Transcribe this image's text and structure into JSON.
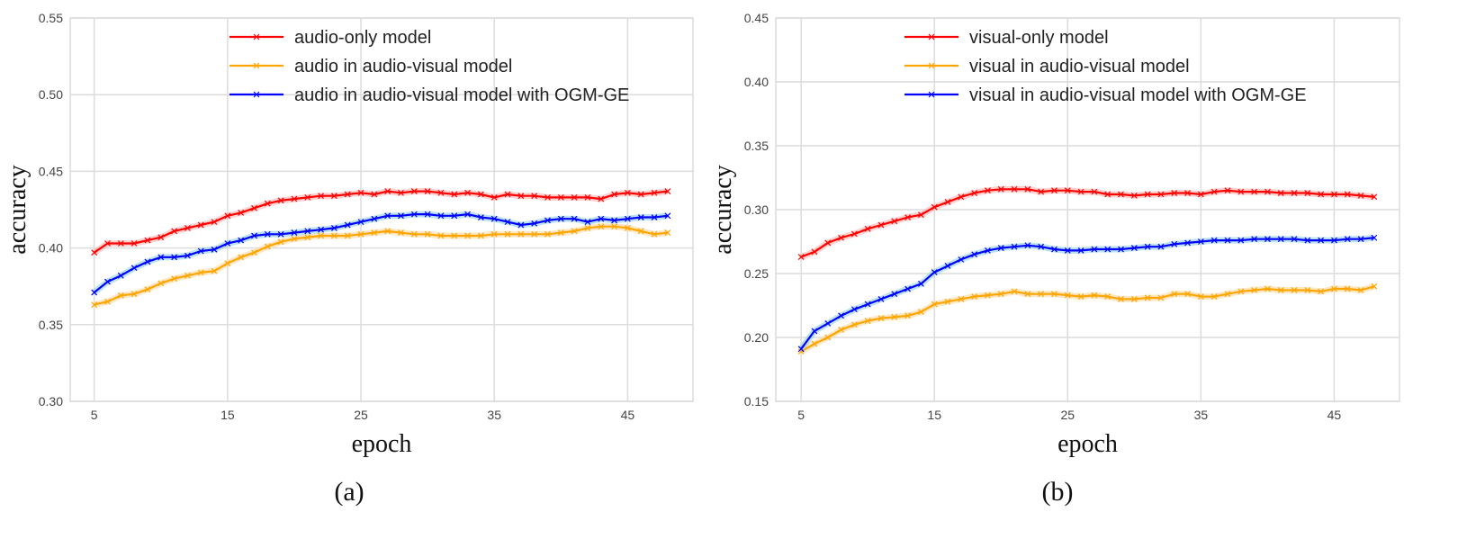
{
  "chart_data": [
    {
      "type": "line",
      "caption": "(a)",
      "xlabel": "epoch",
      "ylabel": "accuracy",
      "xlim": [
        3.2,
        49.9
      ],
      "ylim": [
        0.3,
        0.55
      ],
      "xticks": [
        5,
        15,
        25,
        35,
        45
      ],
      "yticks": [
        "0.30",
        "0.35",
        "0.40",
        "0.45",
        "0.50",
        "0.55"
      ],
      "grid": true,
      "legend_position": "top-center",
      "x": [
        5,
        6,
        7,
        8,
        9,
        10,
        11,
        12,
        13,
        14,
        15,
        16,
        17,
        18,
        19,
        20,
        21,
        22,
        23,
        24,
        25,
        26,
        27,
        28,
        29,
        30,
        31,
        32,
        33,
        34,
        35,
        36,
        37,
        38,
        39,
        40,
        41,
        42,
        43,
        44,
        45,
        46,
        47,
        48
      ],
      "series": [
        {
          "name": "audio-only model",
          "color": "#ff0000",
          "values": [
            0.397,
            0.403,
            0.403,
            0.403,
            0.405,
            0.407,
            0.411,
            0.413,
            0.415,
            0.417,
            0.421,
            0.423,
            0.426,
            0.429,
            0.431,
            0.432,
            0.433,
            0.434,
            0.434,
            0.435,
            0.436,
            0.435,
            0.437,
            0.436,
            0.437,
            0.437,
            0.436,
            0.435,
            0.436,
            0.435,
            0.433,
            0.435,
            0.434,
            0.434,
            0.433,
            0.433,
            0.433,
            0.433,
            0.432,
            0.435,
            0.436,
            0.435,
            0.436,
            0.437
          ]
        },
        {
          "name": "audio in audio-visual model",
          "color": "#ffa500",
          "values": [
            0.363,
            0.365,
            0.369,
            0.37,
            0.373,
            0.377,
            0.38,
            0.382,
            0.384,
            0.385,
            0.39,
            0.394,
            0.397,
            0.401,
            0.404,
            0.406,
            0.407,
            0.408,
            0.408,
            0.408,
            0.409,
            0.41,
            0.411,
            0.41,
            0.409,
            0.409,
            0.408,
            0.408,
            0.408,
            0.408,
            0.409,
            0.409,
            0.409,
            0.409,
            0.409,
            0.41,
            0.411,
            0.413,
            0.414,
            0.414,
            0.413,
            0.411,
            0.409,
            0.41
          ]
        },
        {
          "name": "audio in audio-visual model with OGM-GE",
          "color": "#0000ff",
          "values": [
            0.371,
            0.378,
            0.382,
            0.387,
            0.391,
            0.394,
            0.394,
            0.395,
            0.398,
            0.399,
            0.403,
            0.405,
            0.408,
            0.409,
            0.409,
            0.41,
            0.411,
            0.412,
            0.413,
            0.415,
            0.417,
            0.419,
            0.421,
            0.421,
            0.422,
            0.422,
            0.421,
            0.421,
            0.422,
            0.42,
            0.419,
            0.417,
            0.415,
            0.416,
            0.418,
            0.419,
            0.419,
            0.417,
            0.419,
            0.418,
            0.419,
            0.42,
            0.42,
            0.421
          ]
        }
      ]
    },
    {
      "type": "line",
      "caption": "(b)",
      "xlabel": "epoch",
      "ylabel": "accuracy",
      "xlim": [
        3.1,
        49.9
      ],
      "ylim": [
        0.15,
        0.45
      ],
      "xticks": [
        5,
        15,
        25,
        35,
        45
      ],
      "yticks": [
        "0.15",
        "0.20",
        "0.25",
        "0.30",
        "0.35",
        "0.40",
        "0.45"
      ],
      "grid": true,
      "legend_position": "top-center",
      "x": [
        5,
        6,
        7,
        8,
        9,
        10,
        11,
        12,
        13,
        14,
        15,
        16,
        17,
        18,
        19,
        20,
        21,
        22,
        23,
        24,
        25,
        26,
        27,
        28,
        29,
        30,
        31,
        32,
        33,
        34,
        35,
        36,
        37,
        38,
        39,
        40,
        41,
        42,
        43,
        44,
        45,
        46,
        47,
        48
      ],
      "series": [
        {
          "name": "visual-only model",
          "color": "#ff0000",
          "values": [
            0.263,
            0.267,
            0.274,
            0.278,
            0.281,
            0.285,
            0.288,
            0.291,
            0.294,
            0.296,
            0.302,
            0.306,
            0.31,
            0.313,
            0.315,
            0.316,
            0.316,
            0.316,
            0.314,
            0.315,
            0.315,
            0.314,
            0.314,
            0.312,
            0.312,
            0.311,
            0.312,
            0.312,
            0.313,
            0.313,
            0.312,
            0.314,
            0.315,
            0.314,
            0.314,
            0.314,
            0.313,
            0.313,
            0.313,
            0.312,
            0.312,
            0.312,
            0.311,
            0.31
          ]
        },
        {
          "name": "visual in audio-visual model",
          "color": "#ffa500",
          "values": [
            0.189,
            0.195,
            0.2,
            0.206,
            0.21,
            0.213,
            0.215,
            0.216,
            0.217,
            0.22,
            0.226,
            0.228,
            0.23,
            0.232,
            0.233,
            0.234,
            0.236,
            0.234,
            0.234,
            0.234,
            0.233,
            0.232,
            0.233,
            0.232,
            0.23,
            0.23,
            0.231,
            0.231,
            0.234,
            0.234,
            0.232,
            0.232,
            0.234,
            0.236,
            0.237,
            0.238,
            0.237,
            0.237,
            0.237,
            0.236,
            0.238,
            0.238,
            0.237,
            0.24
          ]
        },
        {
          "name": "visual in audio-visual model with OGM-GE",
          "color": "#0000ff",
          "values": [
            0.191,
            0.205,
            0.211,
            0.217,
            0.222,
            0.226,
            0.23,
            0.234,
            0.238,
            0.242,
            0.251,
            0.256,
            0.261,
            0.265,
            0.268,
            0.27,
            0.271,
            0.272,
            0.271,
            0.269,
            0.268,
            0.268,
            0.269,
            0.269,
            0.269,
            0.27,
            0.271,
            0.271,
            0.273,
            0.274,
            0.275,
            0.276,
            0.276,
            0.276,
            0.277,
            0.277,
            0.277,
            0.277,
            0.276,
            0.276,
            0.276,
            0.277,
            0.277,
            0.278
          ]
        }
      ]
    }
  ]
}
